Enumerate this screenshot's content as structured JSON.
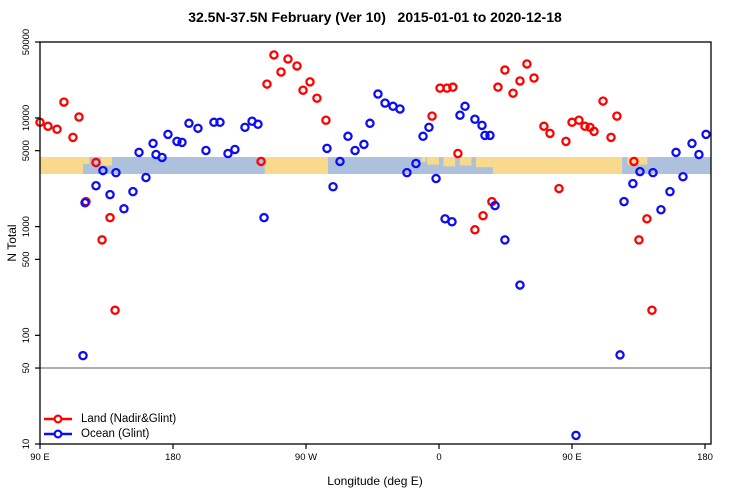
{
  "title": "32.5N-37.5N February (Ver 10)   2015-01-01 to 2020-12-18",
  "legend": {
    "land_label": "Land (Nadir&Glint)",
    "ocean_label": "Ocean (Glint)"
  },
  "chart_data": {
    "type": "scatter",
    "title": "32.5N-37.5N February (Ver 10)   2015-01-01 to 2020-12-18",
    "xlabel": "Longitude (deg E)",
    "ylabel": "N Total",
    "x_axis": {
      "note": "longitude axis wraps eastward starting at 90E; positions are degrees east of 90E",
      "range_deg": [
        0,
        454
      ],
      "ticks": [
        {
          "d": 0,
          "label": "90 E"
        },
        {
          "d": 90,
          "label": "180"
        },
        {
          "d": 180,
          "label": "90 W"
        },
        {
          "d": 270,
          "label": "0"
        },
        {
          "d": 360,
          "label": "90 E"
        },
        {
          "d": 450,
          "label": "180"
        }
      ]
    },
    "y_axis": {
      "scale": "log",
      "range": [
        10,
        50000
      ],
      "ticks": [
        10,
        50,
        100,
        500,
        1000,
        5000,
        10000,
        50000
      ]
    },
    "grid": "off",
    "legend_position": "bottom-left",
    "reference_line_n": 50,
    "colors": {
      "land_series": "#ff0000",
      "ocean_series": "#0c0cf5",
      "strip_land": "#f9da8c",
      "strip_ocean": "#adc0dc",
      "reference_line": "#7d7d7d",
      "axis": "#000000"
    },
    "land_ocean_strip": {
      "band_n_range": [
        3050,
        4370
      ],
      "segments": [
        {
          "surface": "land",
          "from": 0,
          "to": 29.1
        },
        {
          "surface": "ocean",
          "from": 29.1,
          "to": 152.2
        },
        {
          "surface": "land",
          "from": 152.2,
          "to": 194.9
        },
        {
          "surface": "ocean",
          "from": 194.9,
          "to": 306.5
        },
        {
          "surface": "land",
          "from": 306.5,
          "to": 393.9
        },
        {
          "surface": "ocean",
          "from": 393.9,
          "to": 454
        }
      ],
      "land_patches": [
        {
          "from": 29.1,
          "to": 33.5,
          "frac": 0.4
        },
        {
          "from": 41.3,
          "to": 48.7,
          "frac": 0.5
        },
        {
          "from": 258,
          "to": 261,
          "frac": 0.3
        },
        {
          "from": 262,
          "to": 270,
          "frac": 0.45
        },
        {
          "from": 273,
          "to": 281,
          "frac": 0.55
        },
        {
          "from": 284,
          "to": 292,
          "frac": 0.5
        },
        {
          "from": 295,
          "to": 306.5,
          "frac": 0.6
        },
        {
          "from": 397.5,
          "to": 411,
          "frac": 0.45
        }
      ]
    },
    "series": [
      {
        "name": "Land (Nadir&Glint)",
        "color": "#ff0000",
        "points": [
          [
            0.0,
            9120
          ],
          [
            5.4,
            8380
          ],
          [
            11.5,
            7870
          ],
          [
            16.2,
            14000
          ],
          [
            22.3,
            6630
          ],
          [
            26.4,
            10200
          ],
          [
            31.1,
            1700
          ],
          [
            37.9,
            3890
          ],
          [
            42.0,
            755
          ],
          [
            47.4,
            1210
          ],
          [
            50.8,
            170
          ],
          [
            149.6,
            3980
          ],
          [
            153.6,
            20500
          ],
          [
            158.3,
            38000
          ],
          [
            163.1,
            26500
          ],
          [
            167.8,
            34900
          ],
          [
            173.9,
            30100
          ],
          [
            178.0,
            18000
          ],
          [
            182.7,
            21500
          ],
          [
            187.4,
            15200
          ],
          [
            193.5,
            9530
          ],
          [
            265.3,
            10400
          ],
          [
            270.7,
            18800
          ],
          [
            275.4,
            18800
          ],
          [
            279.4,
            19200
          ],
          [
            282.8,
            4710
          ],
          [
            294.3,
            935
          ],
          [
            299.8,
            1260
          ],
          [
            305.8,
            1700
          ],
          [
            309.9,
            19200
          ],
          [
            314.6,
            27600
          ],
          [
            320.1,
            16900
          ],
          [
            324.8,
            21900
          ],
          [
            329.5,
            31400
          ],
          [
            334.3,
            23300
          ],
          [
            341.0,
            8380
          ],
          [
            345.1,
            7220
          ],
          [
            351.2,
            2240
          ],
          [
            355.9,
            6090
          ],
          [
            360.0,
            9120
          ],
          [
            364.7,
            9530
          ],
          [
            368.8,
            8380
          ],
          [
            372.2,
            8200
          ],
          [
            374.9,
            7530
          ],
          [
            381.0,
            14300
          ],
          [
            386.4,
            6630
          ],
          [
            390.4,
            10400
          ],
          [
            401.9,
            3980
          ],
          [
            405.3,
            755
          ],
          [
            410.7,
            1180
          ],
          [
            414.1,
            170
          ]
        ]
      },
      {
        "name": "Ocean (Glint)",
        "color": "#0c0cf5",
        "points": [
          [
            29.1,
            65
          ],
          [
            30.5,
            1660
          ],
          [
            37.9,
            2380
          ],
          [
            42.6,
            3280
          ],
          [
            47.4,
            1970
          ],
          [
            51.4,
            3140
          ],
          [
            56.8,
            1460
          ],
          [
            62.9,
            2100
          ],
          [
            67.0,
            4820
          ],
          [
            71.7,
            2830
          ],
          [
            76.5,
            5830
          ],
          [
            78.5,
            4610
          ],
          [
            82.6,
            4330
          ],
          [
            86.6,
            7060
          ],
          [
            92.7,
            6090
          ],
          [
            96.1,
            5960
          ],
          [
            100.8,
            8930
          ],
          [
            106.9,
            8030
          ],
          [
            112.3,
            5020
          ],
          [
            117.7,
            9120
          ],
          [
            121.8,
            9120
          ],
          [
            127.2,
            4710
          ],
          [
            131.9,
            5130
          ],
          [
            138.7,
            8200
          ],
          [
            143.5,
            9330
          ],
          [
            147.5,
            8750
          ],
          [
            151.6,
            1210
          ],
          [
            194.2,
            5250
          ],
          [
            198.3,
            2330
          ],
          [
            203.0,
            3980
          ],
          [
            208.4,
            6780
          ],
          [
            213.2,
            5020
          ],
          [
            219.2,
            5710
          ],
          [
            223.3,
            8930
          ],
          [
            228.7,
            16600
          ],
          [
            233.5,
            13700
          ],
          [
            238.9,
            12800
          ],
          [
            243.6,
            12100
          ],
          [
            248.3,
            3140
          ],
          [
            254.4,
            3810
          ],
          [
            259.2,
            6780
          ],
          [
            263.2,
            8200
          ],
          [
            268.0,
            2770
          ],
          [
            274.1,
            1180
          ],
          [
            278.8,
            1110
          ],
          [
            284.2,
            10600
          ],
          [
            287.6,
            12800
          ],
          [
            294.3,
            9730
          ],
          [
            299.1,
            8550
          ],
          [
            301.1,
            6920
          ],
          [
            304.5,
            6920
          ],
          [
            307.9,
            1560
          ],
          [
            314.6,
            755
          ],
          [
            324.8,
            290
          ],
          [
            362.7,
            12
          ],
          [
            392.5,
            66
          ],
          [
            395.2,
            1700
          ],
          [
            401.2,
            2490
          ],
          [
            406.0,
            3210
          ],
          [
            414.8,
            3140
          ],
          [
            420.2,
            1430
          ],
          [
            426.3,
            2100
          ],
          [
            430.4,
            4820
          ],
          [
            435.1,
            2880
          ],
          [
            441.2,
            5830
          ],
          [
            445.9,
            4610
          ],
          [
            450.7,
            7060
          ]
        ]
      }
    ]
  }
}
